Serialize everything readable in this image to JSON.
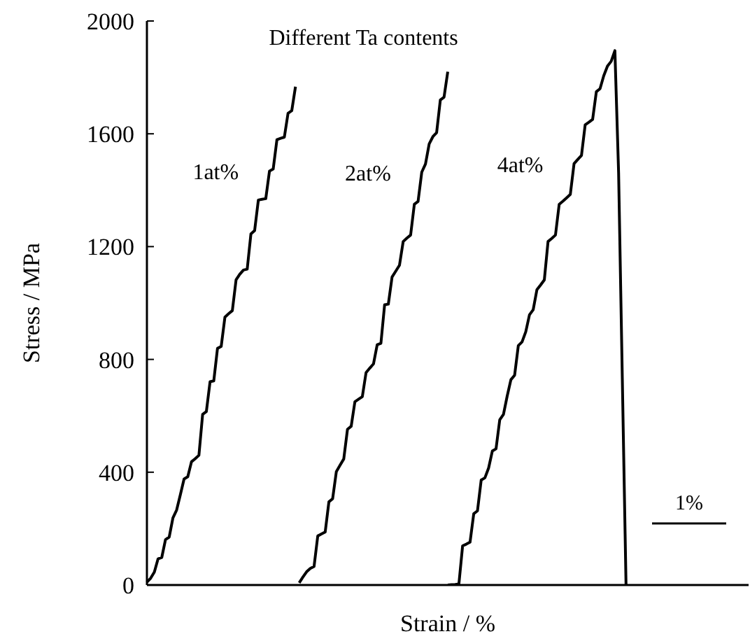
{
  "chart_data": {
    "type": "line",
    "title": "Different Ta contents",
    "xlabel": "Strain / %",
    "ylabel": "Stress / MPa",
    "annotations": [
      "1%"
    ],
    "ylim": [
      0,
      2000
    ],
    "yticks": [
      0,
      400,
      800,
      1200,
      1600,
      2000
    ],
    "tick_labels": "y",
    "marker": "none",
    "line_style": "solid",
    "categories": [
      null,
      null,
      null,
      null,
      null,
      null,
      null,
      null,
      null,
      null,
      null,
      null,
      null,
      null,
      null,
      null,
      null,
      null,
      null,
      null,
      null,
      null,
      null,
      null,
      null,
      null,
      null,
      null,
      null,
      null,
      null,
      null,
      null,
      null,
      null,
      null,
      null,
      null,
      null,
      null,
      null,
      null,
      null,
      null,
      null,
      null,
      null,
      null,
      null,
      null,
      null,
      null,
      null,
      null,
      null,
      null,
      null,
      null,
      null,
      null,
      null,
      null,
      null,
      null,
      null,
      null,
      null,
      null,
      null,
      null,
      null,
      null,
      null,
      null,
      null,
      null,
      null,
      null,
      null,
      null,
      null,
      null,
      null,
      null,
      null,
      null,
      null,
      null,
      null,
      null,
      null,
      null,
      null,
      null,
      null,
      null,
      null,
      null,
      null,
      null,
      null,
      null,
      null,
      null,
      null,
      null,
      null,
      null,
      null,
      null,
      null,
      null,
      null,
      null,
      null,
      null,
      null,
      null,
      null,
      null,
      null,
      null,
      null,
      null,
      null,
      null,
      null,
      null,
      null,
      null,
      null,
      null,
      null,
      null,
      null,
      null,
      null,
      null,
      null,
      null,
      null,
      null,
      null,
      null,
      null,
      null,
      null,
      null,
      null,
      null,
      null,
      null,
      null,
      null,
      null,
      null,
      null,
      null,
      null,
      null,
      null,
      null,
      null
    ],
    "series": [
      {
        "name": "1at%",
        "color": "#000000",
        "values": [
          10,
          24,
          46,
          93,
          98,
          161,
          170,
          238,
          266,
          320,
          376,
          384,
          437,
          448,
          460,
          605,
          615,
          721,
          724,
          839,
          846,
          950,
          962,
          973,
          1082,
          1102,
          1117,
          1120,
          1245,
          1257,
          1365,
          1368,
          1370,
          1468,
          1475,
          1579,
          1584,
          1588,
          1673,
          1682,
          1767,
          null,
          null,
          null,
          null,
          null,
          null,
          null,
          null,
          null,
          null,
          null,
          null,
          null,
          null,
          null,
          null,
          null,
          null,
          null,
          null,
          null,
          null,
          null,
          null,
          null,
          null,
          null,
          null,
          null,
          null,
          null,
          null,
          null,
          null,
          null,
          null,
          null,
          null,
          null,
          null,
          null,
          null,
          null,
          null,
          null,
          null,
          null,
          null,
          null,
          null,
          null,
          null,
          null,
          null,
          null,
          null,
          null,
          null,
          null,
          null,
          null,
          null,
          null,
          null,
          null,
          null,
          null,
          null,
          null,
          null,
          null,
          null,
          null,
          null,
          null,
          null,
          null,
          null,
          null,
          null,
          null,
          null,
          null,
          null,
          null,
          null,
          null,
          null,
          null,
          null,
          null,
          null,
          null,
          null,
          null,
          null,
          null,
          null,
          null,
          null,
          null,
          null,
          null,
          null,
          null,
          null,
          null,
          null,
          null,
          null,
          null,
          null,
          null,
          null,
          null,
          null,
          null,
          null,
          null,
          null,
          null,
          null
        ]
      },
      {
        "name": "2at%",
        "color": "#000000",
        "values": [
          null,
          null,
          null,
          null,
          null,
          null,
          null,
          null,
          null,
          null,
          null,
          null,
          null,
          null,
          null,
          null,
          null,
          null,
          null,
          null,
          null,
          null,
          null,
          null,
          null,
          null,
          null,
          null,
          null,
          null,
          null,
          null,
          null,
          null,
          null,
          null,
          null,
          null,
          null,
          null,
          null,
          8,
          28,
          47,
          59,
          66,
          174,
          181,
          188,
          295,
          306,
          402,
          425,
          447,
          552,
          563,
          650,
          659,
          668,
          753,
          769,
          784,
          852,
          857,
          994,
          996,
          1092,
          1113,
          1134,
          1218,
          1230,
          1241,
          1350,
          1360,
          1464,
          1493,
          1564,
          1590,
          1604,
          1720,
          1730,
          1820,
          null,
          null,
          null,
          null,
          null,
          null,
          null,
          null,
          null,
          null,
          null,
          null,
          null,
          null,
          null,
          null,
          null,
          null,
          null,
          null,
          null,
          null,
          null,
          null,
          null,
          null,
          null,
          null,
          null,
          null,
          null,
          null,
          null,
          null,
          null,
          null,
          null,
          null,
          null,
          null,
          null,
          null,
          null,
          null,
          null,
          null,
          null,
          null,
          null,
          null,
          null,
          null,
          null,
          null,
          null,
          null,
          null,
          null,
          null,
          null,
          null,
          null,
          null,
          null,
          null,
          null,
          null,
          null,
          null,
          null,
          null,
          null,
          null,
          null,
          null,
          null,
          null,
          null,
          null,
          null,
          null
        ]
      },
      {
        "name": "4at%",
        "color": "#000000",
        "values": [
          null,
          null,
          null,
          null,
          null,
          null,
          null,
          null,
          null,
          null,
          null,
          null,
          null,
          null,
          null,
          null,
          null,
          null,
          null,
          null,
          null,
          null,
          null,
          null,
          null,
          null,
          null,
          null,
          null,
          null,
          null,
          null,
          null,
          null,
          null,
          null,
          null,
          null,
          null,
          null,
          null,
          null,
          null,
          null,
          null,
          null,
          null,
          null,
          null,
          null,
          null,
          null,
          null,
          null,
          null,
          null,
          null,
          null,
          null,
          null,
          null,
          null,
          null,
          null,
          null,
          null,
          null,
          null,
          null,
          null,
          null,
          null,
          null,
          null,
          null,
          null,
          null,
          null,
          null,
          null,
          null,
          0,
          1,
          2,
          4,
          139,
          145,
          152,
          253,
          263,
          372,
          380,
          415,
          475,
          483,
          586,
          605,
          670,
          728,
          744,
          849,
          862,
          898,
          958,
          976,
          1047,
          1064,
          1082,
          1218,
          1229,
          1241,
          1350,
          1361,
          1373,
          1385,
          1494,
          1509,
          1523,
          1632,
          1641,
          1651,
          1749,
          1760,
          1806,
          1840,
          1857,
          1895,
          1462,
          731,
          0,
          null,
          null,
          null,
          null,
          null,
          null,
          null,
          null,
          null,
          null,
          null,
          null,
          null,
          null,
          null,
          null,
          null,
          null,
          null,
          null,
          null,
          null,
          null,
          null,
          null,
          null,
          null,
          null,
          null,
          null,
          null,
          null,
          null
        ]
      }
    ]
  }
}
